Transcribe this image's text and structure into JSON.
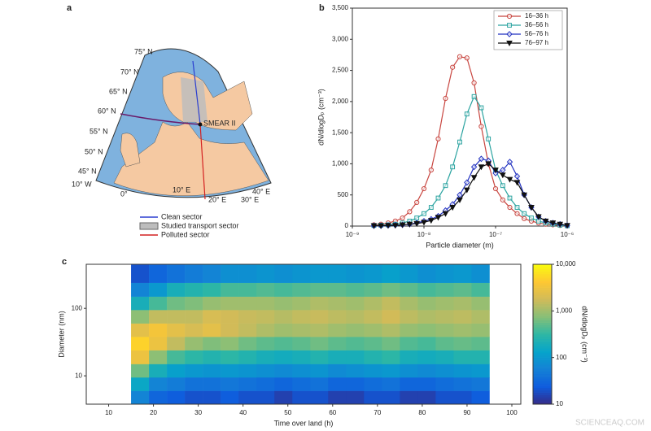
{
  "panel_labels": [
    "a",
    "b",
    "c"
  ],
  "map": {
    "lat_labels": [
      "75° N",
      "70° N",
      "65° N",
      "60° N",
      "55° N",
      "50° N",
      "45° N"
    ],
    "lon_labels": [
      "10° W",
      "0°",
      "10° E",
      "20° E",
      "30° E",
      "40° E"
    ],
    "site": "SMEAR II",
    "legend": [
      {
        "label": "Clean sector",
        "color": "#2b3fd0"
      },
      {
        "label": "Studied transport sector",
        "color": "#bdbdbd"
      },
      {
        "label": "Polluted sector",
        "color": "#d42020"
      }
    ]
  },
  "chart_data": [
    {
      "type": "line",
      "xlabel": "Particle diameter (m)",
      "ylabel": "dN/dlogDₚ (cm⁻³)",
      "xscale": "log",
      "legend": "upper right",
      "xlim": [
        1e-09,
        1e-06
      ],
      "xticks": [
        {
          "value": 1e-09,
          "label": "10⁻⁹"
        },
        {
          "value": 1e-08,
          "label": "10⁻⁸"
        },
        {
          "value": 1e-07,
          "label": "10⁻⁷"
        },
        {
          "value": 1e-06,
          "label": "10⁻⁶"
        }
      ],
      "ylim": [
        0,
        3500
      ],
      "yticks": [
        0,
        500,
        {
          "value": 1000,
          "label": "1,000"
        },
        {
          "value": 1500,
          "label": "1,500"
        },
        {
          "value": 2000,
          "label": "2,000"
        },
        {
          "value": 2500,
          "label": "2,500"
        },
        {
          "value": 3000,
          "label": "3,000"
        },
        {
          "value": 3500,
          "label": "3,500"
        }
      ],
      "x": [
        2e-09,
        2.51e-09,
        3.16e-09,
        3.98e-09,
        5.01e-09,
        6.31e-09,
        7.94e-09,
        1e-08,
        1.26e-08,
        1.58e-08,
        2e-08,
        2.51e-08,
        3.16e-08,
        3.98e-08,
        5.01e-08,
        6.31e-08,
        7.94e-08,
        1e-07,
        1.26e-07,
        1.58e-07,
        2e-07,
        2.51e-07,
        3.16e-07,
        3.98e-07,
        5.01e-07,
        6.31e-07,
        7.94e-07,
        1e-06
      ],
      "series": [
        {
          "name": "16–36 h",
          "color": "#c8453f",
          "marker": "circle",
          "values": [
            20,
            30,
            50,
            80,
            130,
            230,
            380,
            600,
            900,
            1400,
            2050,
            2550,
            2720,
            2700,
            2300,
            1600,
            1000,
            600,
            420,
            300,
            200,
            120,
            80,
            50,
            30,
            20,
            10,
            5
          ]
        },
        {
          "name": "36–56 h",
          "color": "#2aa3a0",
          "marker": "square",
          "values": [
            10,
            15,
            20,
            30,
            50,
            80,
            130,
            200,
            300,
            450,
            650,
            950,
            1350,
            1800,
            2080,
            1900,
            1400,
            900,
            650,
            450,
            300,
            200,
            130,
            80,
            50,
            30,
            15,
            5
          ]
        },
        {
          "name": "56–76 h",
          "color": "#2030c0",
          "marker": "diamond",
          "values": [
            5,
            5,
            10,
            15,
            20,
            30,
            50,
            80,
            110,
            160,
            250,
            350,
            500,
            700,
            950,
            1080,
            1050,
            850,
            900,
            1030,
            800,
            500,
            300,
            150,
            80,
            50,
            30,
            10
          ]
        },
        {
          "name": "76–97 h",
          "color": "#111111",
          "marker": "triangle",
          "values": [
            5,
            5,
            10,
            10,
            20,
            30,
            40,
            60,
            90,
            140,
            200,
            300,
            420,
            580,
            780,
            950,
            1000,
            900,
            820,
            750,
            700,
            500,
            300,
            150,
            80,
            50,
            30,
            10
          ]
        }
      ]
    },
    {
      "type": "heatmap",
      "xlabel": "Time over land (h)",
      "ylabel": "Diameter (nm)",
      "yscale": "log",
      "xlim": [
        5,
        102
      ],
      "xticks": [
        10,
        20,
        30,
        40,
        50,
        60,
        70,
        80,
        90,
        100
      ],
      "ylim": [
        3.8,
        450
      ],
      "yticks": [
        10,
        100
      ],
      "x_edges": [
        15,
        19,
        23,
        27,
        31,
        35,
        39,
        43,
        47,
        51,
        55,
        59,
        63,
        67,
        71,
        75,
        79,
        83,
        87,
        91,
        95
      ],
      "y_edges": [
        3.8,
        6,
        9.5,
        15,
        24,
        38,
        60,
        95,
        150,
        240,
        450
      ],
      "z": [
        [
          60,
          30,
          25,
          20,
          20,
          25,
          20,
          20,
          15,
          20,
          20,
          15,
          15,
          20,
          20,
          15,
          15,
          20,
          20,
          25
        ],
        [
          150,
          60,
          50,
          40,
          40,
          45,
          40,
          35,
          30,
          35,
          40,
          30,
          30,
          35,
          40,
          30,
          30,
          35,
          40,
          45
        ],
        [
          600,
          200,
          120,
          100,
          90,
          100,
          90,
          80,
          70,
          80,
          90,
          70,
          80,
          90,
          100,
          80,
          70,
          80,
          90,
          100
        ],
        [
          3000,
          800,
          400,
          300,
          250,
          300,
          250,
          200,
          180,
          200,
          250,
          200,
          200,
          250,
          300,
          200,
          180,
          200,
          250,
          250
        ],
        [
          5000,
          3000,
          1500,
          900,
          700,
          800,
          600,
          500,
          450,
          500,
          600,
          500,
          450,
          500,
          600,
          450,
          400,
          500,
          550,
          500
        ],
        [
          2500,
          3500,
          2500,
          2000,
          2500,
          1800,
          1500,
          1200,
          1000,
          1100,
          1200,
          1000,
          900,
          1000,
          1200,
          900,
          800,
          900,
          1000,
          900
        ],
        [
          800,
          1500,
          1500,
          1500,
          2000,
          1800,
          1600,
          1500,
          1300,
          1500,
          1600,
          1400,
          1300,
          1500,
          1800,
          1400,
          1200,
          1300,
          1400,
          1200
        ],
        [
          200,
          400,
          600,
          700,
          900,
          1000,
          1000,
          1000,
          900,
          1000,
          1200,
          1100,
          1000,
          1200,
          1500,
          1100,
          900,
          1000,
          1100,
          900
        ],
        [
          60,
          100,
          200,
          250,
          300,
          400,
          400,
          450,
          400,
          450,
          500,
          500,
          450,
          500,
          600,
          500,
          400,
          450,
          500,
          400
        ],
        [
          20,
          30,
          40,
          50,
          60,
          80,
          80,
          90,
          80,
          90,
          100,
          100,
          90,
          100,
          120,
          100,
          80,
          90,
          100,
          80
        ]
      ],
      "colorbar_label": "dN/dlogDₚ (cm⁻³)",
      "clim": [
        10,
        10000
      ],
      "cticks": [
        10,
        100,
        {
          "value": 1000,
          "label": "1,000"
        },
        {
          "value": 10000,
          "label": "10,000"
        }
      ],
      "colormap": [
        "#352a87",
        "#0f5cdd",
        "#1481d6",
        "#06a4ca",
        "#2eb7a4",
        "#87bf77",
        "#d1bb59",
        "#fec832",
        "#f9fb0e"
      ]
    }
  ],
  "watermark": "SCIENCEAQ.COM"
}
